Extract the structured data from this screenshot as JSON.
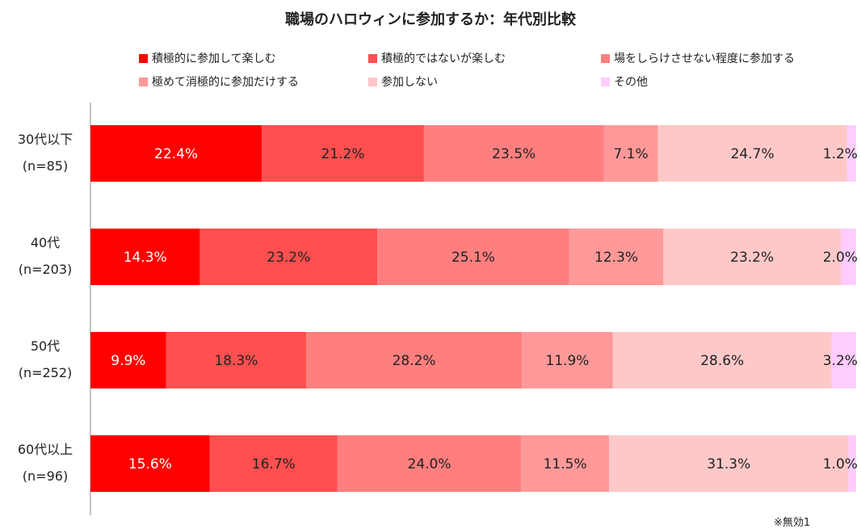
{
  "chart_data": {
    "type": "bar",
    "orientation": "horizontal",
    "stacked": true,
    "title": "職場のハロウィンに参加するか：年代別比較",
    "categories": [
      {
        "label": "30代以下",
        "n": "(n=85)"
      },
      {
        "label": "40代",
        "n": "(n=203)"
      },
      {
        "label": "50代",
        "n": "(n=252)"
      },
      {
        "label": "60代以上",
        "n": "(n=96)"
      }
    ],
    "series": [
      {
        "name": "積極的に参加して楽しむ",
        "color": "#ff0000",
        "values": [
          22.4,
          14.3,
          9.9,
          15.6
        ]
      },
      {
        "name": "積極的ではないが楽しむ",
        "color": "#ff4f4f",
        "values": [
          21.2,
          23.2,
          18.3,
          16.7
        ]
      },
      {
        "name": "場をしらけさせない程度に参加する",
        "color": "#ff7f7f",
        "values": [
          23.5,
          25.1,
          28.2,
          24.0
        ]
      },
      {
        "name": "極めて消極的に参加だけする",
        "color": "#ff9999",
        "values": [
          7.1,
          12.3,
          11.9,
          11.5
        ]
      },
      {
        "name": "参加しない",
        "color": "#ffc8c8",
        "values": [
          24.7,
          23.2,
          28.6,
          31.3
        ]
      },
      {
        "name": "その他",
        "color": "#ffccff",
        "values": [
          1.2,
          2.0,
          3.2,
          1.0
        ]
      }
    ],
    "data_label_format": "{v}%",
    "xlim": [
      0,
      100
    ],
    "legend_position": "top",
    "grid": false,
    "note": "※無効1"
  }
}
